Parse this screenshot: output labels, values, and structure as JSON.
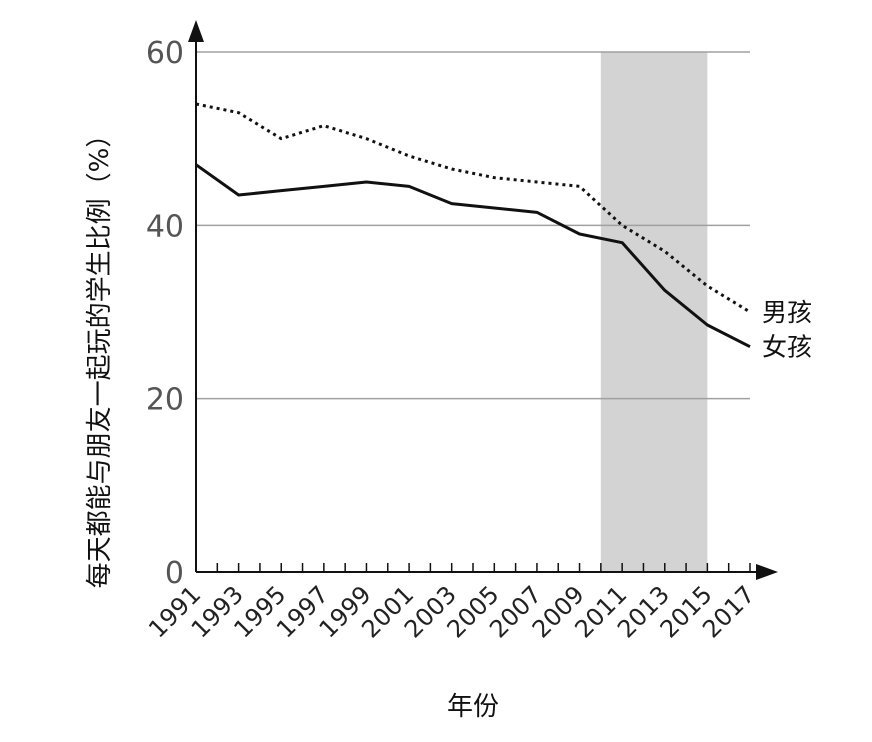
{
  "chart_data": {
    "type": "line",
    "xlabel": "年份",
    "ylabel": "每天都能与朋友一起玩的学生比例（%）",
    "ylim": [
      0,
      60
    ],
    "yticks": [
      "0",
      "20",
      "40",
      "60"
    ],
    "x": [
      "1991",
      "1993",
      "1995",
      "1997",
      "1999",
      "2001",
      "2003",
      "2005",
      "2007",
      "2009",
      "2011",
      "2013",
      "2015",
      "2017"
    ],
    "highlight_range": [
      "2010",
      "2015"
    ],
    "grid": "horizontal",
    "series": [
      {
        "name": "男孩",
        "style": "dotted",
        "values": [
          54.0,
          53.0,
          50.0,
          51.5,
          50.0,
          48.0,
          46.5,
          45.5,
          45.0,
          44.5,
          40.0,
          37.0,
          33.0,
          30.0
        ]
      },
      {
        "name": "女孩",
        "style": "solid",
        "values": [
          47.0,
          43.5,
          44.0,
          44.5,
          45.0,
          44.5,
          42.5,
          42.0,
          41.5,
          39.0,
          38.0,
          32.5,
          28.5,
          26.0
        ]
      }
    ],
    "colors": {
      "line": "#111111",
      "grid": "#a0a0a0",
      "highlight": "#d3d3d3"
    }
  }
}
